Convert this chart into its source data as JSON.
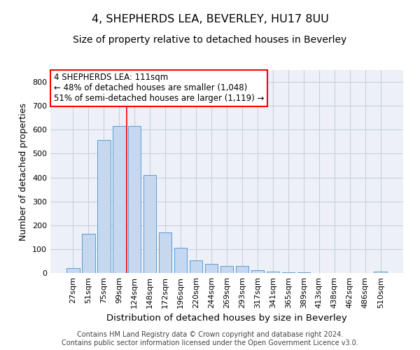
{
  "title": "4, SHEPHERDS LEA, BEVERLEY, HU17 8UU",
  "subtitle": "Size of property relative to detached houses in Beverley",
  "xlabel": "Distribution of detached houses by size in Beverley",
  "ylabel": "Number of detached properties",
  "categories": [
    "27sqm",
    "51sqm",
    "75sqm",
    "99sqm",
    "124sqm",
    "148sqm",
    "172sqm",
    "196sqm",
    "220sqm",
    "244sqm",
    "269sqm",
    "293sqm",
    "317sqm",
    "341sqm",
    "365sqm",
    "389sqm",
    "413sqm",
    "438sqm",
    "462sqm",
    "486sqm",
    "510sqm"
  ],
  "values": [
    20,
    165,
    558,
    615,
    615,
    410,
    170,
    105,
    52,
    38,
    30,
    30,
    13,
    5,
    3,
    3,
    0,
    0,
    0,
    0,
    7
  ],
  "bar_color": "#c5d8f0",
  "bar_edge_color": "#5b9bd5",
  "grid_color": "#c8d0dc",
  "bg_color": "#edf1f7",
  "red_line_x": 3.5,
  "annotation_line1": "4 SHEPHERDS LEA: 111sqm",
  "annotation_line2": "← 48% of detached houses are smaller (1,048)",
  "annotation_line3": "51% of semi-detached houses are larger (1,119) →",
  "ylim": [
    0,
    850
  ],
  "yticks": [
    0,
    100,
    200,
    300,
    400,
    500,
    600,
    700,
    800
  ],
  "footer": "Contains HM Land Registry data © Crown copyright and database right 2024.\nContains public sector information licensed under the Open Government Licence v3.0.",
  "title_fontsize": 11.5,
  "subtitle_fontsize": 10,
  "xlabel_fontsize": 9.5,
  "ylabel_fontsize": 9,
  "tick_fontsize": 8,
  "ann_fontsize": 8.5,
  "footer_fontsize": 7
}
